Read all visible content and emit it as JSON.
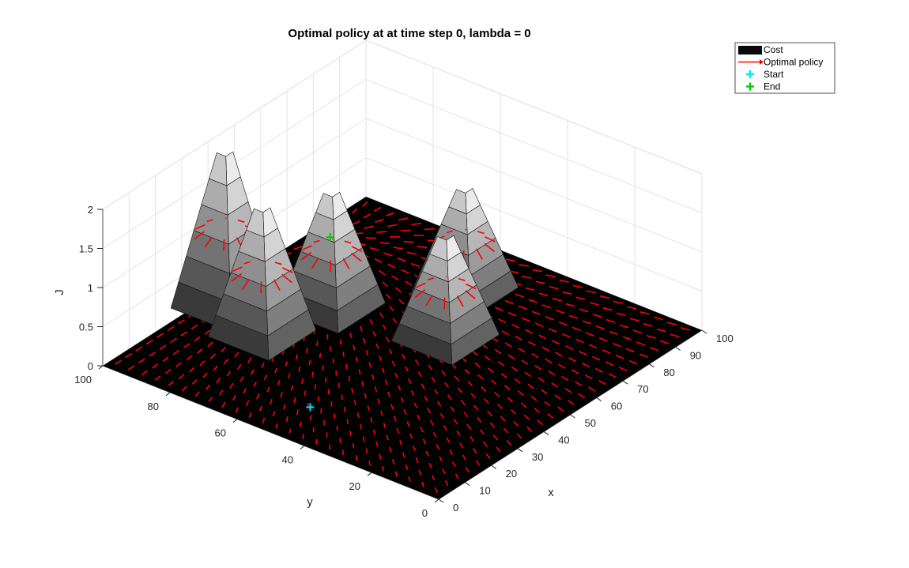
{
  "chart_data": {
    "type": "surface3d",
    "title": "Optimal policy at at time step 0, lambda = 0",
    "xlabel": "x",
    "ylabel": "y",
    "zlabel": "J",
    "xlim": [
      0,
      100
    ],
    "ylim": [
      0,
      100
    ],
    "zlim": [
      0,
      2
    ],
    "xticks": [
      "0",
      "10",
      "20",
      "30",
      "40",
      "50",
      "60",
      "70",
      "80",
      "90",
      "100"
    ],
    "yticks": [
      "0",
      "20",
      "40",
      "60",
      "80",
      "100"
    ],
    "zticks": [
      "0",
      "0.5",
      "1",
      "1.5",
      "2"
    ],
    "grid": true,
    "legend_position": "top-right",
    "legend": [
      {
        "label": "Cost",
        "kind": "patch",
        "color": "#0a0a0a"
      },
      {
        "label": "Optimal policy",
        "kind": "arrow",
        "color": "#ff0000"
      },
      {
        "label": "Start",
        "kind": "marker",
        "color": "#00e5ff"
      },
      {
        "label": "End",
        "kind": "marker",
        "color": "#00cc00"
      }
    ],
    "peaks": [
      {
        "x": 35,
        "y": 80,
        "height": 1.6
      },
      {
        "x": 40,
        "y": 95,
        "height": 1.95
      },
      {
        "x": 55,
        "y": 75,
        "height": 1.45
      },
      {
        "x": 60,
        "y": 45,
        "height": 1.3
      },
      {
        "x": 80,
        "y": 55,
        "height": 1.3
      }
    ],
    "start": {
      "x": 15,
      "y": 50
    },
    "end": {
      "x": 80,
      "y": 95
    },
    "colors": {
      "floor": "#000000",
      "policy": "#ff0000",
      "start": "#00e5ff",
      "end": "#00cc00"
    }
  }
}
